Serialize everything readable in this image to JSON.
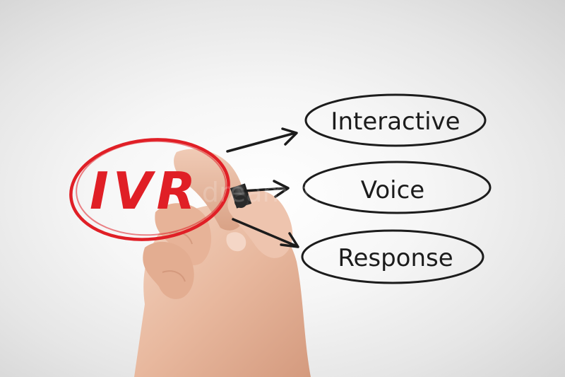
{
  "acronym": {
    "text": "IVR",
    "color": "#e01f26"
  },
  "expansions": [
    {
      "word": "Interactive"
    },
    {
      "word": "Voice"
    },
    {
      "word": "Response"
    }
  ],
  "ink_color": "#1c1c1c",
  "watermark": "dreamstime"
}
